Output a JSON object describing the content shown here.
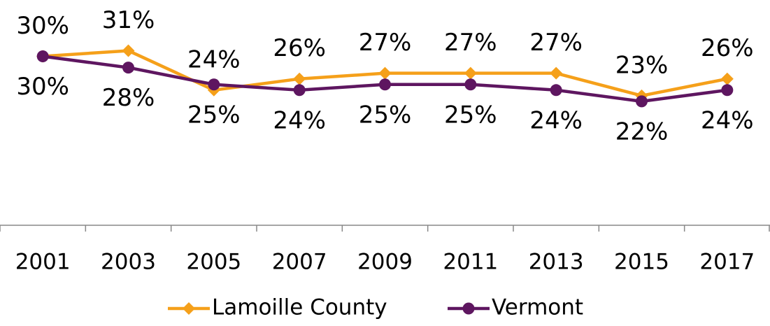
{
  "chart_data": {
    "type": "line",
    "categories": [
      "2001",
      "2003",
      "2005",
      "2007",
      "2009",
      "2011",
      "2013",
      "2015",
      "2017"
    ],
    "series": [
      {
        "name": "Lamoille County",
        "color": "#f5a01a",
        "marker": "diamond",
        "values": [
          30,
          31,
          24,
          26,
          27,
          27,
          27,
          23,
          26
        ],
        "value_labels": [
          "30%",
          "31%",
          "24%",
          "26%",
          "27%",
          "27%",
          "27%",
          "23%",
          "26%"
        ]
      },
      {
        "name": "Vermont",
        "color": "#5e1660",
        "marker": "circle",
        "values": [
          30,
          28,
          25,
          24,
          25,
          25,
          24,
          22,
          24
        ],
        "value_labels": [
          "30%",
          "28%",
          "25%",
          "24%",
          "25%",
          "25%",
          "24%",
          "22%",
          "24%"
        ]
      }
    ],
    "ylim": [
      0,
      40
    ],
    "legend": "bottom"
  }
}
